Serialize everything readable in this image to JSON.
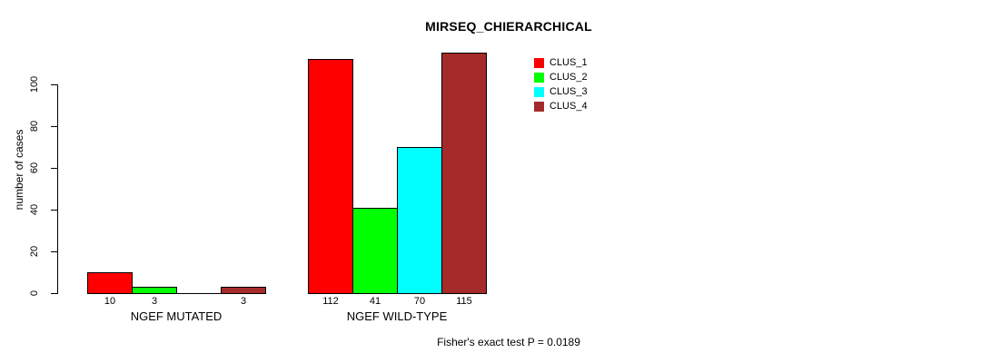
{
  "title": "MIRSEQ_CHIERARCHICAL",
  "footer": "Fisher's exact test P = 0.0189",
  "y_axis": {
    "label": "number of cases",
    "ticks": [
      0,
      20,
      40,
      60,
      80,
      100
    ]
  },
  "chart_data": {
    "type": "bar",
    "title": "MIRSEQ_CHIERARCHICAL",
    "xlabel": "",
    "ylabel": "number of cases",
    "ylim": [
      0,
      116
    ],
    "y_ticks": [
      0,
      20,
      40,
      60,
      80,
      100
    ],
    "grid": false,
    "legend_position": "top-right-inside",
    "categories": [
      "NGEF MUTATED",
      "NGEF WILD-TYPE"
    ],
    "series": [
      {
        "name": "CLUS_1",
        "color": "#FF0000",
        "values": [
          10,
          112
        ]
      },
      {
        "name": "CLUS_2",
        "color": "#00FF00",
        "values": [
          3,
          41
        ]
      },
      {
        "name": "CLUS_3",
        "color": "#00FFFF",
        "values": [
          0,
          70
        ]
      },
      {
        "name": "CLUS_4",
        "color": "#A52A2A",
        "values": [
          3,
          115
        ]
      }
    ],
    "bar_labels": [
      [
        "10",
        "3",
        "",
        "3"
      ],
      [
        "112",
        "41",
        "70",
        "115"
      ]
    ],
    "annotation": "Fisher's exact test P = 0.0189"
  }
}
